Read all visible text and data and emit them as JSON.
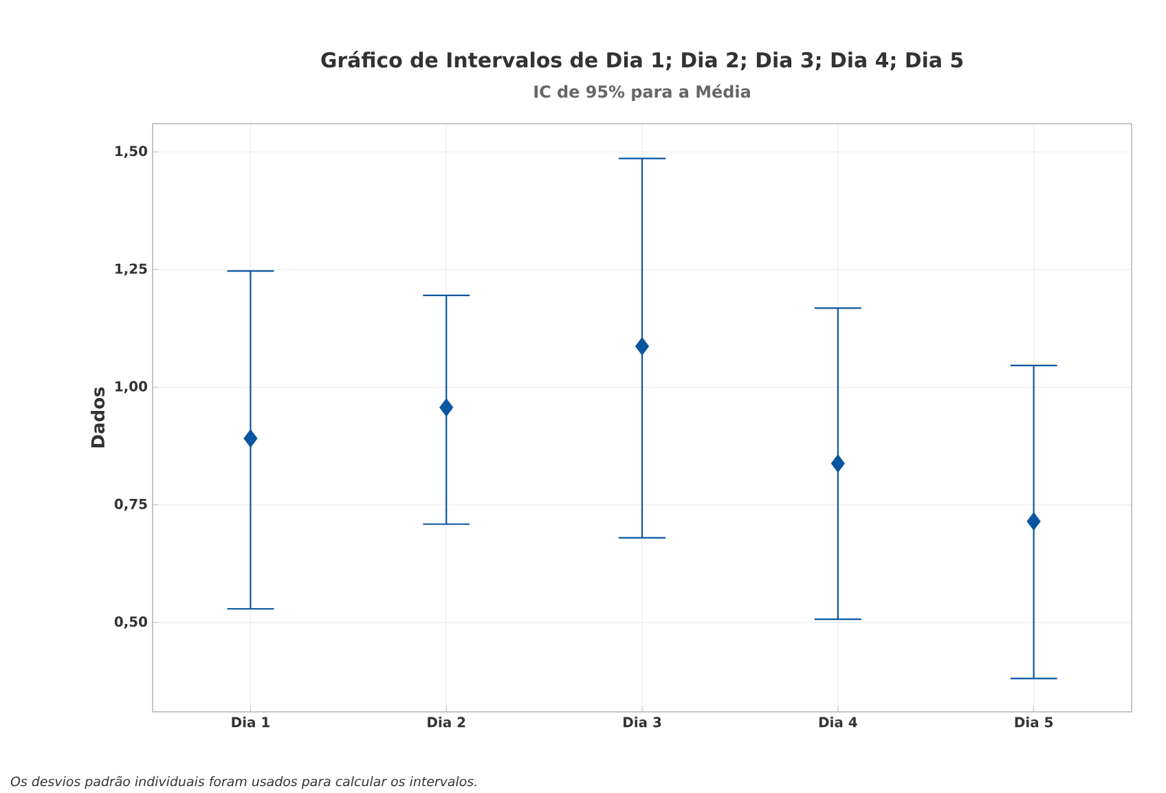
{
  "chart_data": {
    "type": "scatter",
    "title": "Gráfico de Intervalos de Dia 1; Dia 2; Dia 3; Dia 4; Dia 5",
    "subtitle": "IC de 95% para a Média",
    "ylabel": "Dados",
    "categories": [
      "Dia 1",
      "Dia 2",
      "Dia 3",
      "Dia 4",
      "Dia 5"
    ],
    "values": [
      0.891,
      0.957,
      1.087,
      0.838,
      0.715
    ],
    "errors": [
      [
        0.529,
        1.247
      ],
      [
        0.709,
        1.195
      ],
      [
        0.68,
        1.486
      ],
      [
        0.507,
        1.168
      ],
      [
        0.381,
        1.046
      ]
    ],
    "color": "#0a559f",
    "marker": "diamond",
    "grid": true,
    "ylim": [
      0.31,
      1.56
    ],
    "yticks": [
      {
        "value": 0.5,
        "label": "0,50"
      },
      {
        "value": 0.75,
        "label": "0,75"
      },
      {
        "value": 1.0,
        "label": "1,00"
      },
      {
        "value": 1.25,
        "label": "1,25"
      },
      {
        "value": 1.5,
        "label": "1,50"
      }
    ],
    "annotations": [
      "Os desvios padrão individuais foram usados para calcular os intervalos."
    ]
  }
}
